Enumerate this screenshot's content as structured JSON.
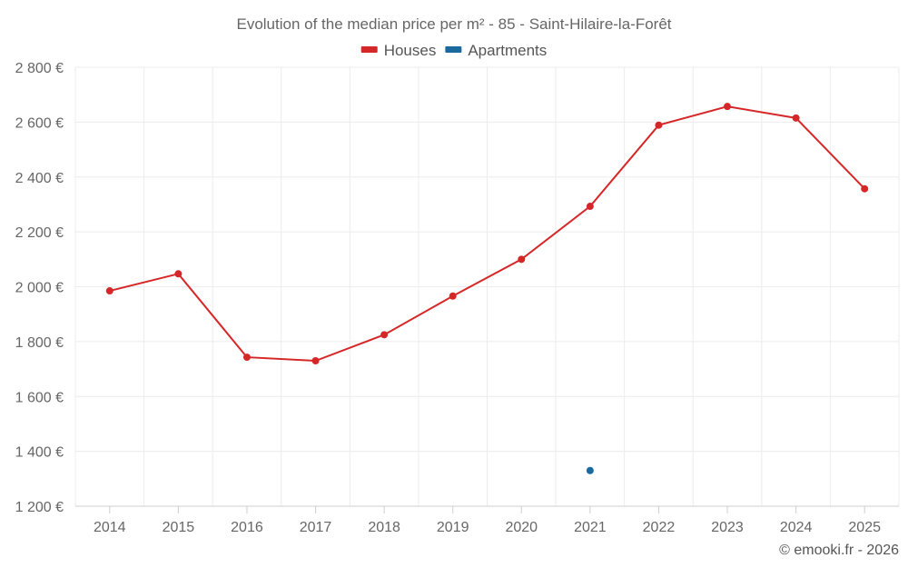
{
  "chart_data": {
    "type": "line",
    "title": "Evolution of the median price per m² - 85 - Saint-Hilaire-la-Forêt",
    "x": [
      "2014",
      "2015",
      "2016",
      "2017",
      "2018",
      "2019",
      "2020",
      "2021",
      "2022",
      "2023",
      "2024",
      "2025"
    ],
    "series": [
      {
        "name": "Houses",
        "color": "#d62728",
        "values": [
          1985,
          2047,
          1743,
          1730,
          1825,
          1966,
          2100,
          2293,
          2589,
          2657,
          2615,
          2357
        ]
      },
      {
        "name": "Apartments",
        "color": "#1a6aa0",
        "values": [
          null,
          null,
          null,
          null,
          null,
          null,
          null,
          1330,
          null,
          null,
          null,
          null
        ]
      }
    ],
    "ylim": [
      1200,
      2800
    ],
    "yticks": [
      1200,
      1400,
      1600,
      1800,
      2000,
      2200,
      2400,
      2600,
      2800
    ],
    "ytick_labels": [
      "1 200 €",
      "1 400 €",
      "1 600 €",
      "1 800 €",
      "2 000 €",
      "2 200 €",
      "2 400 €",
      "2 600 €",
      "2 800 €"
    ],
    "xlabel": "",
    "ylabel": "",
    "grid": true,
    "legend_position": "top-center"
  },
  "credit": "© emooki.fr - 2026"
}
